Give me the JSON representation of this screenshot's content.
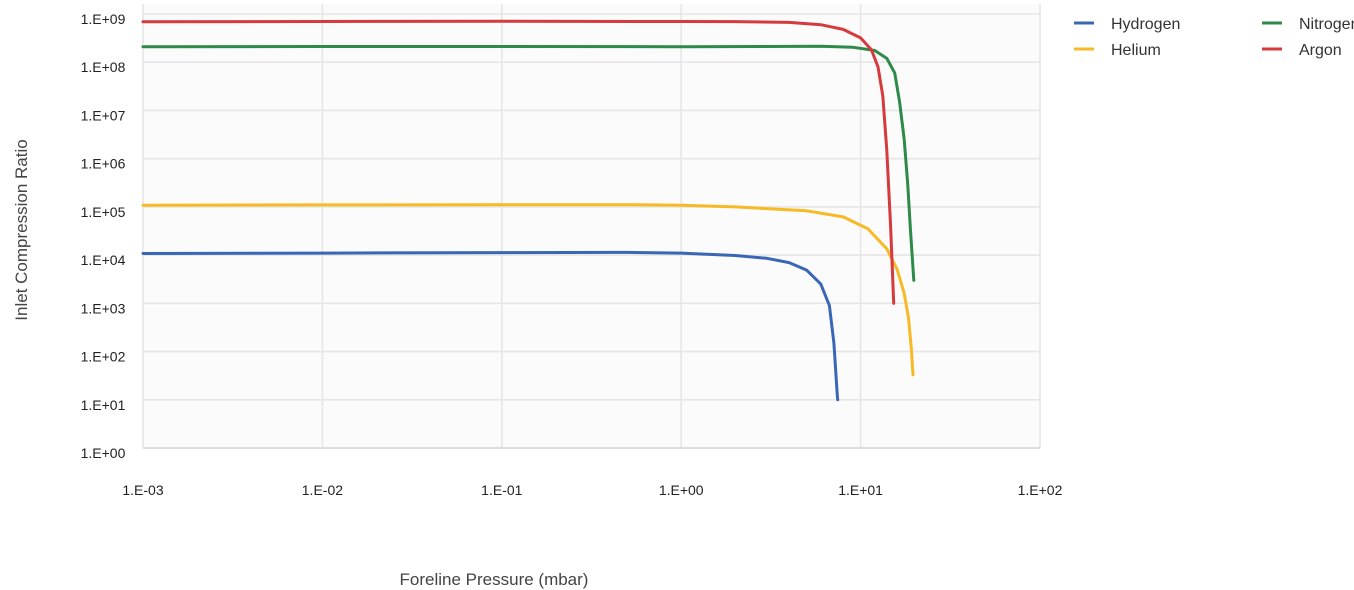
{
  "chart_data": {
    "type": "line",
    "title": "",
    "xlabel": "Foreline Pressure (mbar)",
    "ylabel": "Inlet Compression Ratio",
    "x_scale": "log",
    "y_scale": "log",
    "xlim": [
      0.001,
      100
    ],
    "ylim": [
      1,
      1000000000
    ],
    "grid": true,
    "legend_position": "top-right",
    "x_ticks": [
      {
        "value": 0.001,
        "label": "1.E-03"
      },
      {
        "value": 0.01,
        "label": "1.E-02"
      },
      {
        "value": 0.1,
        "label": "1.E-01"
      },
      {
        "value": 1,
        "label": "1.E+00"
      },
      {
        "value": 10,
        "label": "1.E+01"
      },
      {
        "value": 100,
        "label": "1.E+02"
      }
    ],
    "y_ticks": [
      {
        "value": 1,
        "label": "1.E+00"
      },
      {
        "value": 10,
        "label": "1.E+01"
      },
      {
        "value": 100,
        "label": "1.E+02"
      },
      {
        "value": 1000,
        "label": "1.E+03"
      },
      {
        "value": 10000,
        "label": "1.E+04"
      },
      {
        "value": 100000,
        "label": "1.E+05"
      },
      {
        "value": 1000000,
        "label": "1.E+06"
      },
      {
        "value": 10000000,
        "label": "1.E+07"
      },
      {
        "value": 100000000,
        "label": "1.E+08"
      },
      {
        "value": 1000000000,
        "label": "1.E+09"
      }
    ],
    "series": [
      {
        "name": "Hydrogen",
        "color": "#3a67b5",
        "x": [
          0.001,
          0.01,
          0.1,
          0.5,
          1,
          2,
          3,
          4,
          5,
          6,
          6.7,
          7.1,
          7.3,
          7.4,
          7.45
        ],
        "y": [
          10800,
          11000,
          11300,
          11400,
          11000,
          9800,
          8600,
          7000,
          4900,
          2500,
          900,
          150,
          30,
          14,
          10
        ]
      },
      {
        "name": "Helium",
        "color": "#f7b924",
        "x": [
          0.001,
          0.01,
          0.1,
          0.5,
          1,
          2,
          5,
          8,
          11,
          14,
          16,
          17.5,
          18.5,
          19.2,
          19.6
        ],
        "y": [
          108000,
          110000,
          111000,
          111000,
          108000,
          100000,
          83000,
          62000,
          35000,
          13500,
          5000,
          1600,
          500,
          110,
          33
        ]
      },
      {
        "name": "Nitrogen",
        "color": "#2d8a48",
        "x": [
          0.001,
          0.01,
          0.1,
          1,
          3,
          6,
          9,
          12,
          14,
          15.5,
          16.5,
          17.5,
          18.3,
          19,
          19.8
        ],
        "y": [
          210000000,
          212000000,
          212000000,
          210000000,
          212000000,
          215000000,
          205000000,
          175000000,
          120000000,
          60000000,
          15000000,
          2500000,
          300000,
          30000,
          3000
        ]
      },
      {
        "name": "Argon",
        "color": "#d63a3c",
        "x": [
          0.001,
          0.01,
          0.1,
          1,
          2,
          4,
          6,
          8,
          10,
          11.5,
          12.5,
          13.3,
          14,
          14.7,
          15.3
        ],
        "y": [
          690000000,
          700000000,
          705000000,
          700000000,
          695000000,
          670000000,
          600000000,
          480000000,
          320000000,
          180000000,
          80000000,
          20000000,
          1500000,
          40000,
          1000
        ]
      }
    ]
  }
}
